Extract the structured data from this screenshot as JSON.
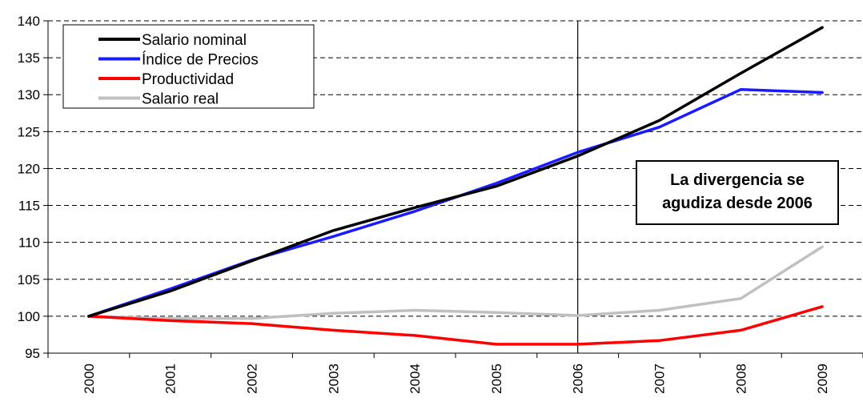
{
  "chart_data": {
    "type": "line",
    "title": "",
    "xlabel": "",
    "ylabel": "",
    "x": [
      "2000",
      "2001",
      "2002",
      "2003",
      "2004",
      "2005",
      "2006",
      "2007",
      "2008",
      "2009"
    ],
    "ylim": [
      95,
      140
    ],
    "yticks": [
      95,
      100,
      105,
      110,
      115,
      120,
      125,
      130,
      135,
      140
    ],
    "grid": "horizontal dashed",
    "legend_position": "top-left",
    "series": [
      {
        "name": "Salario nominal",
        "color": "#000000",
        "values": [
          100,
          103.4,
          107.5,
          111.6,
          114.7,
          117.6,
          121.7,
          126.5,
          132.9,
          139.1
        ]
      },
      {
        "name": "Índice de Precios",
        "color": "#1a1aff",
        "values": [
          100,
          103.7,
          107.6,
          110.8,
          114.2,
          118.0,
          122.2,
          125.6,
          130.7,
          130.3
        ]
      },
      {
        "name": "Productividad",
        "color": "#ff0000",
        "values": [
          100,
          99.4,
          99.0,
          98.1,
          97.4,
          96.2,
          96.2,
          96.7,
          98.1,
          101.3
        ]
      },
      {
        "name": "Salario real",
        "color": "#c0c0c0",
        "values": [
          100,
          99.7,
          99.7,
          100.4,
          100.8,
          100.5,
          100.1,
          100.8,
          102.4,
          109.4
        ]
      }
    ],
    "vertical_marker_x": "2006",
    "annotation": {
      "lines": [
        "La divergencia se",
        "agudiza desde 2006"
      ]
    }
  }
}
